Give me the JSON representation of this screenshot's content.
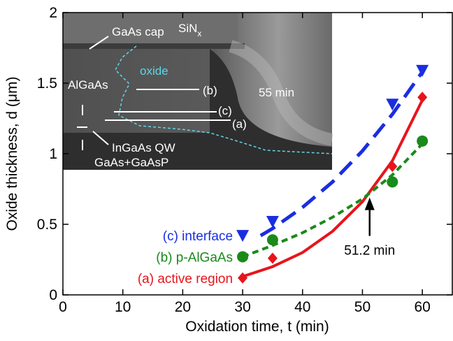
{
  "chart_data": {
    "type": "scatter",
    "xlabel": "Oxidation time, t (min)",
    "ylabel": "Oxide thickness, d (μm)",
    "xlim": [
      0,
      65
    ],
    "xticks": [
      0,
      10,
      20,
      30,
      40,
      50,
      60
    ],
    "ylim": [
      0,
      2
    ],
    "yticks": [
      0,
      0.5,
      1,
      1.5,
      2
    ],
    "series": [
      {
        "name": "(a) active region",
        "color": "#e8141c",
        "marker": "diamond",
        "line_style": "solid",
        "x": [
          30,
          35,
          55,
          60
        ],
        "values": [
          0.12,
          0.26,
          0.91,
          1.4
        ],
        "fit": {
          "x": [
            30,
            35,
            40,
            45,
            50,
            55,
            60
          ],
          "values": [
            0.13,
            0.2,
            0.3,
            0.45,
            0.66,
            0.95,
            1.38
          ]
        }
      },
      {
        "name": "(b) p-AlGaAs",
        "color": "#1a8a1a",
        "marker": "circle",
        "line_style": "dashed",
        "x": [
          30,
          35,
          55,
          60
        ],
        "values": [
          0.27,
          0.39,
          0.8,
          1.09
        ],
        "fit": {
          "x": [
            30,
            35,
            40,
            45,
            50,
            55,
            60
          ],
          "values": [
            0.27,
            0.35,
            0.44,
            0.55,
            0.68,
            0.85,
            1.07
          ]
        }
      },
      {
        "name": "(c) interface",
        "color": "#1a2ee0",
        "marker": "triangle",
        "line_style": "longdash",
        "x": [
          30,
          35,
          55,
          60
        ],
        "values": [
          0.42,
          0.52,
          1.35,
          1.59
        ],
        "fit": {
          "x": [
            33,
            35,
            40,
            45,
            50,
            55,
            60
          ],
          "values": [
            0.42,
            0.47,
            0.62,
            0.8,
            1.02,
            1.28,
            1.58
          ]
        }
      }
    ],
    "annotation": {
      "text": "51.2 min",
      "x": 51.2,
      "y": 0.69
    },
    "inset": {
      "gaas_cap": "GaAs cap",
      "sin": "SiN",
      "sin_sub": "x",
      "oxide": "oxide",
      "algaas": "AlGaAs",
      "b": "(b)",
      "time": "55 min",
      "c": "(c)",
      "a": "(a)",
      "qw": "InGaAs QW",
      "barrier": "GaAs+GaAsP"
    }
  }
}
